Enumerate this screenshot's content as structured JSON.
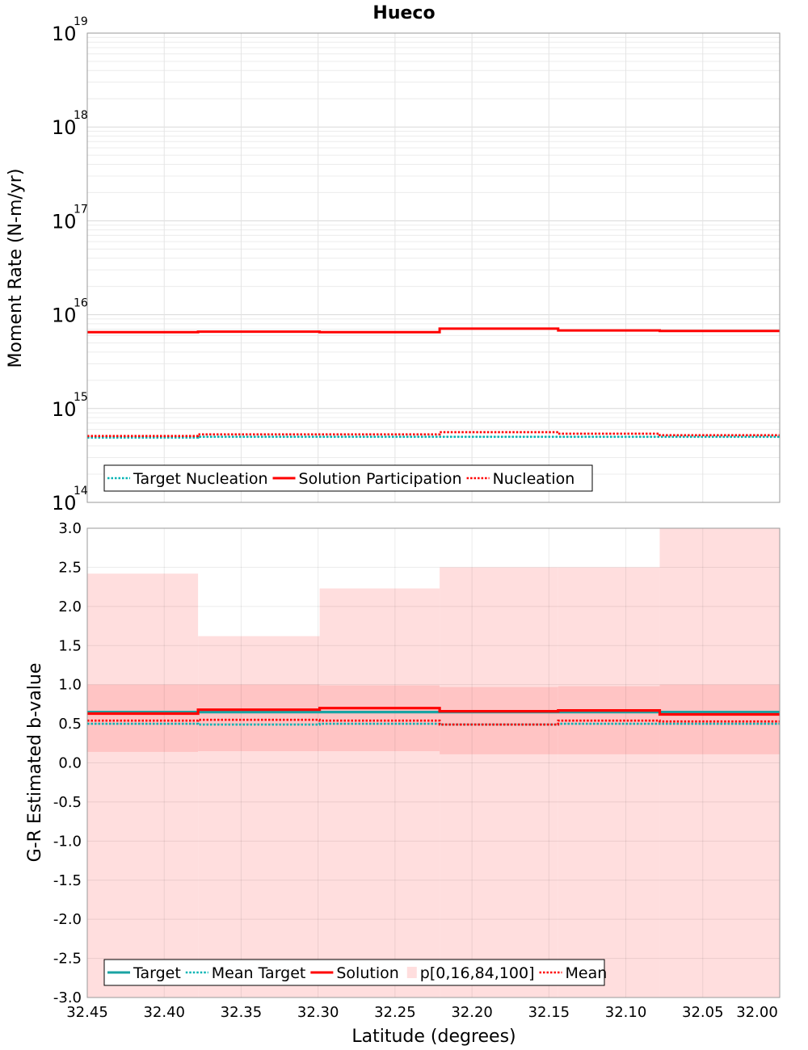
{
  "chart_data": [
    {
      "type": "line",
      "title": "Hueco",
      "xlabel": "Latitude (degrees)",
      "ylabel": "Moment Rate (N-m/yr)",
      "yscale": "log",
      "ylim": [
        100000000000000.0,
        1e+19
      ],
      "xlim": [
        32.45,
        32.0
      ],
      "ytick_labels": [
        {
          "base": "10",
          "exp": "14",
          "value": 100000000000000.0
        },
        {
          "base": "10",
          "exp": "15",
          "value": 1000000000000000.0
        },
        {
          "base": "10",
          "exp": "16",
          "value": 1e+16
        },
        {
          "base": "10",
          "exp": "17",
          "value": 1e+17
        },
        {
          "base": "10",
          "exp": "18",
          "value": 1e+18
        },
        {
          "base": "10",
          "exp": "19",
          "value": 1e+19
        }
      ],
      "bin_edges": [
        32.45,
        32.378,
        32.299,
        32.221,
        32.144,
        32.078,
        32.0
      ],
      "series": [
        {
          "name": "Target Nucleation",
          "color": "#00b3b3",
          "style": "dotted",
          "values": [
            490000000000000.0,
            500000000000000.0,
            500000000000000.0,
            500000000000000.0,
            500000000000000.0,
            500000000000000.0
          ]
        },
        {
          "name": "Solution Participation",
          "color": "#ff0000",
          "style": "solid",
          "values": [
            6500000000000000.0,
            6600000000000000.0,
            6500000000000000.0,
            7100000000000000.0,
            6800000000000000.0,
            6700000000000000.0
          ]
        },
        {
          "name": "Nucleation",
          "color": "#ff0000",
          "style": "dotted",
          "values": [
            510000000000000.0,
            530000000000000.0,
            530000000000000.0,
            560000000000000.0,
            540000000000000.0,
            520000000000000.0
          ]
        }
      ],
      "legend": {
        "placement": "bottom-left",
        "items": [
          {
            "label": "Target Nucleation",
            "color": "#00b3b3",
            "style": "dotted"
          },
          {
            "label": "Solution Participation",
            "color": "#ff0000",
            "style": "solid"
          },
          {
            "label": "Nucleation",
            "color": "#ff0000",
            "style": "dotted"
          }
        ]
      }
    },
    {
      "type": "line",
      "xlabel": "Latitude (degrees)",
      "ylabel": "G-R Estimated b-value",
      "ylim": [
        -3.0,
        3.0
      ],
      "xlim": [
        32.45,
        32.0
      ],
      "xtick_labels": [
        "32.45",
        "32.40",
        "32.35",
        "32.30",
        "32.25",
        "32.20",
        "32.15",
        "32.10",
        "32.05",
        "32.00"
      ],
      "xtick_values": [
        32.45,
        32.4,
        32.35,
        32.3,
        32.25,
        32.2,
        32.15,
        32.1,
        32.05,
        32.0
      ],
      "ytick_labels": [
        "3.0",
        "2.5",
        "2.0",
        "1.5",
        "1.0",
        "0.5",
        "0.0",
        "-0.5",
        "-1.0",
        "-1.5",
        "-2.0",
        "-2.5",
        "-3.0"
      ],
      "ytick_values": [
        3.0,
        2.5,
        2.0,
        1.5,
        1.0,
        0.5,
        0.0,
        -0.5,
        -1.0,
        -1.5,
        -2.0,
        -2.5,
        -3.0
      ],
      "bin_edges": [
        32.45,
        32.378,
        32.299,
        32.221,
        32.144,
        32.078,
        32.0
      ],
      "bands": {
        "name": "p[0,16,84,100]",
        "p0": [
          -3.0,
          -3.0,
          -3.0,
          -3.0,
          -3.0,
          -3.0
        ],
        "p16": [
          0.14,
          0.15,
          0.15,
          0.11,
          0.11,
          0.11
        ],
        "p84": [
          1.0,
          1.0,
          0.99,
          0.97,
          0.98,
          1.0
        ],
        "p100": [
          2.42,
          1.62,
          2.23,
          2.5,
          2.5,
          3.0
        ],
        "outer_color": "#ffdede",
        "inner_color": "#ffc4c4"
      },
      "series": [
        {
          "name": "Target",
          "color": "#1aa3a3",
          "style": "solid",
          "values": [
            0.65,
            0.65,
            0.65,
            0.65,
            0.65,
            0.65
          ]
        },
        {
          "name": "Mean Target",
          "color": "#00b3b3",
          "style": "dotted",
          "values": [
            0.5,
            0.49,
            0.5,
            0.49,
            0.5,
            0.5
          ]
        },
        {
          "name": "Solution",
          "color": "#ff0000",
          "style": "solid",
          "values": [
            0.63,
            0.68,
            0.7,
            0.66,
            0.67,
            0.62
          ]
        },
        {
          "name": "Mean",
          "color": "#ff0000",
          "style": "dotted",
          "values": [
            0.54,
            0.55,
            0.54,
            0.49,
            0.54,
            0.53
          ]
        }
      ],
      "legend": {
        "placement": "bottom-left",
        "items": [
          {
            "label": "Target",
            "color": "#1aa3a3",
            "style": "solid"
          },
          {
            "label": "Mean Target",
            "color": "#00b3b3",
            "style": "dotted"
          },
          {
            "label": "Solution",
            "color": "#ff0000",
            "style": "solid"
          },
          {
            "label": "p[0,16,84,100]",
            "color": "#ffdede",
            "style": "patch"
          },
          {
            "label": "Mean",
            "color": "#ff0000",
            "style": "dotted"
          }
        ]
      }
    }
  ]
}
